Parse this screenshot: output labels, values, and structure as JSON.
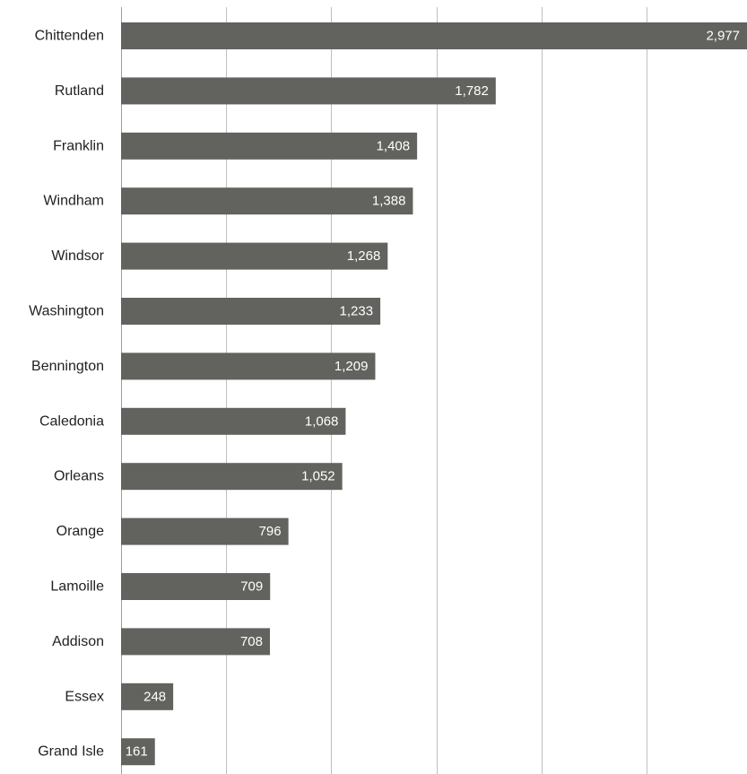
{
  "chart_data": {
    "type": "bar",
    "orientation": "horizontal",
    "categories": [
      "Chittenden",
      "Rutland",
      "Franklin",
      "Windham",
      "Windsor",
      "Washington",
      "Bennington",
      "Caledonia",
      "Orleans",
      "Orange",
      "Lamoille",
      "Addison",
      "Essex",
      "Grand Isle"
    ],
    "values": [
      2977,
      1782,
      1408,
      1388,
      1268,
      1233,
      1209,
      1068,
      1052,
      796,
      709,
      708,
      248,
      161
    ],
    "value_labels": [
      "2,977",
      "1,782",
      "1,408",
      "1,388",
      "1,268",
      "1,233",
      "1,209",
      "1,068",
      "1,052",
      "796",
      "709",
      "708",
      "248",
      "161"
    ],
    "xlim": [
      0,
      3000
    ],
    "x_gridlines": [
      0,
      500,
      1000,
      1500,
      2000,
      2500
    ],
    "grid": true,
    "legend": "none",
    "bar_color": "#62625e",
    "value_label_color": "#ffffff",
    "title": "",
    "xlabel": "",
    "ylabel": ""
  }
}
